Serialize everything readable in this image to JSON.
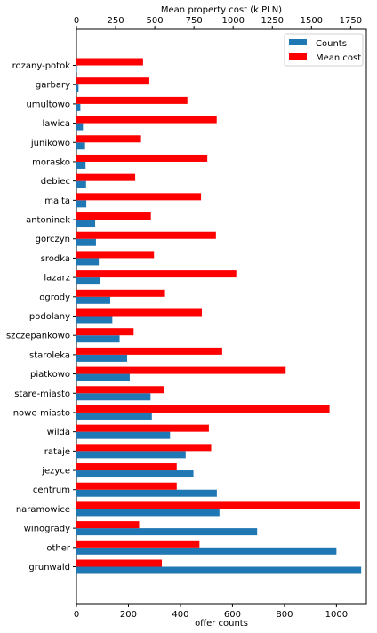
{
  "chart_data": {
    "type": "bar",
    "orientation": "horizontal",
    "categories": [
      "rozany-potok",
      "garbary",
      "umultowo",
      "lawica",
      "junikowo",
      "morasko",
      "debiec",
      "malta",
      "antoninek",
      "gorczyn",
      "srodka",
      "lazarz",
      "ogrody",
      "podolany",
      "szczepankowo",
      "staroleka",
      "piatkowo",
      "stare-miasto",
      "nowe-miasto",
      "wilda",
      "rataje",
      "jezyce",
      "centrum",
      "naramowice",
      "winogrady",
      "other",
      "grunwald"
    ],
    "series": [
      {
        "name": "Counts",
        "axis": "bottom",
        "color": "#1f77b4",
        "values": [
          2,
          8,
          15,
          25,
          33,
          35,
          37,
          38,
          72,
          75,
          86,
          90,
          130,
          138,
          166,
          195,
          205,
          285,
          290,
          360,
          420,
          450,
          540,
          550,
          695,
          1000,
          1095
        ]
      },
      {
        "name": "Mean cost",
        "axis": "top",
        "color": "#ff0000",
        "values": [
          425,
          465,
          708,
          895,
          412,
          835,
          375,
          795,
          475,
          890,
          495,
          1020,
          565,
          800,
          365,
          930,
          1335,
          560,
          1615,
          845,
          860,
          640,
          640,
          1810,
          400,
          785,
          545
        ]
      }
    ],
    "bottom_axis": {
      "label": "offer counts",
      "ticks": [
        "0",
        "200",
        "400",
        "600",
        "800",
        "1000"
      ],
      "range": [
        0,
        1115
      ]
    },
    "top_axis": {
      "label": "Mean property cost (k PLN)",
      "ticks": [
        "0",
        "250",
        "500",
        "750",
        "1000",
        "1250",
        "1500",
        "1750"
      ],
      "range": [
        0,
        1850
      ]
    },
    "legend": {
      "location": "top-right",
      "entries": [
        "Counts",
        "Mean cost"
      ]
    },
    "grid": false
  }
}
